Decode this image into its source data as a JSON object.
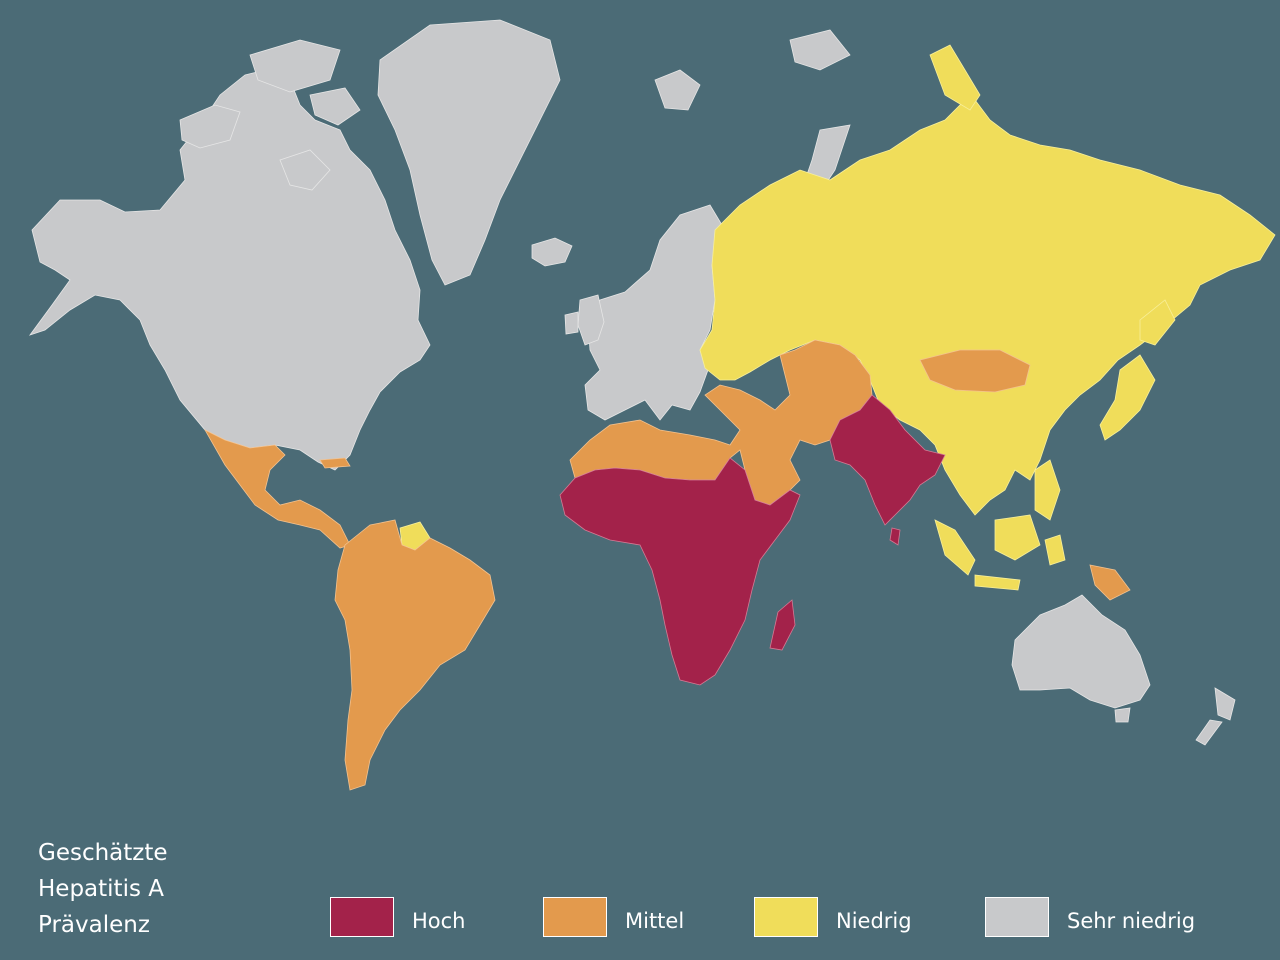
{
  "map": {
    "colors": {
      "ocean": "#4b6b76",
      "hoch": "#a3224a",
      "mittel": "#e39a4d",
      "niedrig": "#f0dd5a",
      "sehr_niedrig": "#c8c9cb"
    }
  },
  "legend": {
    "title_lines": [
      "Geschätzte",
      "Hepatitis A",
      "Prävalenz"
    ],
    "items": [
      {
        "label": "Hoch",
        "color": "#a3224a"
      },
      {
        "label": "Mittel",
        "color": "#e39a4d"
      },
      {
        "label": "Niedrig",
        "color": "#f0dd5a"
      },
      {
        "label": "Sehr niedrig",
        "color": "#c8c9cb"
      }
    ]
  }
}
